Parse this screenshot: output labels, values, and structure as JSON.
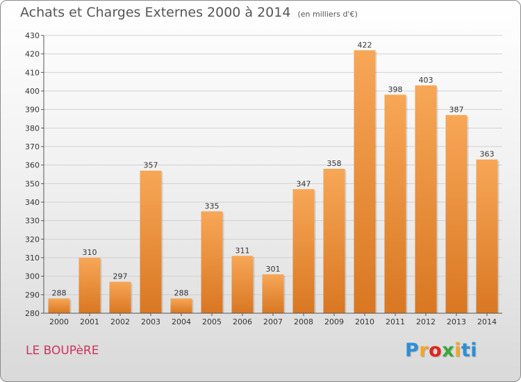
{
  "header": {
    "title": "Achats et Charges Externes 2000 à 2014",
    "unit": "(en milliers d'€)"
  },
  "footer": {
    "town": "LE BOUPèRE",
    "logo": [
      "P",
      "r",
      "o",
      "x",
      "i",
      "ti"
    ]
  },
  "colors": {
    "bar_light": "#f7a757",
    "bar_dark": "#d97722",
    "grid": "#d0d0d0",
    "axis_text": "#333333"
  },
  "chart_data": {
    "type": "bar",
    "title": "Achats et Charges Externes 2000 à 2014",
    "subtitle": "(en milliers d'€)",
    "categories": [
      "2000",
      "2001",
      "2002",
      "2003",
      "2004",
      "2005",
      "2006",
      "2007",
      "2008",
      "2009",
      "2010",
      "2011",
      "2012",
      "2013",
      "2014"
    ],
    "values": [
      288,
      310,
      297,
      357,
      288,
      335,
      311,
      301,
      347,
      358,
      422,
      398,
      403,
      387,
      363
    ],
    "ylim": [
      280,
      430
    ],
    "yticks": [
      280,
      290,
      300,
      310,
      320,
      330,
      340,
      350,
      360,
      370,
      380,
      390,
      400,
      410,
      420,
      430
    ],
    "grid": true,
    "xlabel": "",
    "ylabel": ""
  }
}
